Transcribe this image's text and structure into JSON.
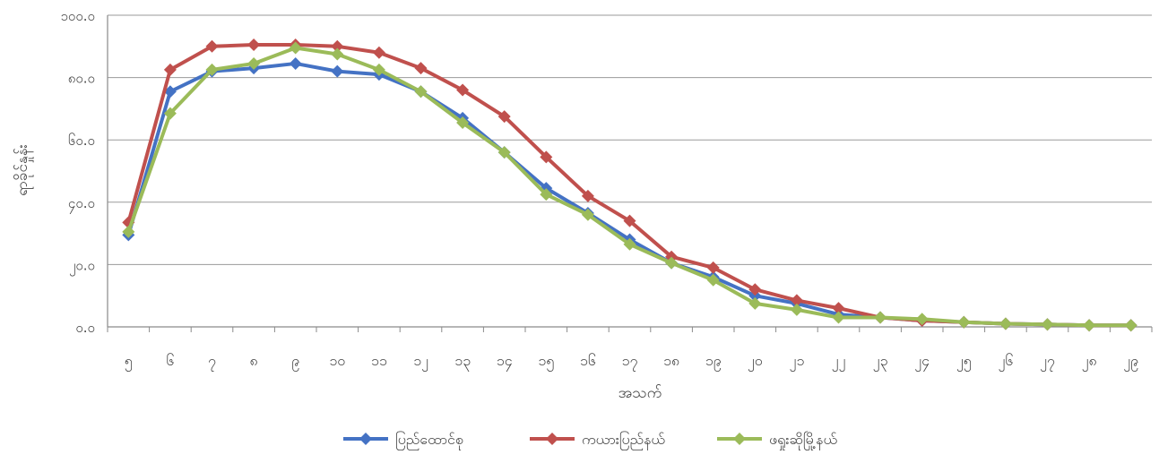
{
  "chart_data": {
    "type": "line",
    "title": "",
    "xlabel": "အသက်",
    "ylabel": "ရာခိုင်နှုန်း",
    "ylim": [
      0,
      100
    ],
    "yticks": [
      "၀.၀",
      "၂၀.၀",
      "၄၀.၀",
      "၆၀.၀",
      "၈၀.၀",
      "၁၀၀.၀"
    ],
    "grid": true,
    "legend_position": "bottom",
    "categories": [
      "၅",
      "၆",
      "၇",
      "၈",
      "၉",
      "၁၀",
      "၁၁",
      "၁၂",
      "၁၃",
      "၁၄",
      "၁၅",
      "၁၆",
      "၁၇",
      "၁၈",
      "၁၉",
      "၂၀",
      "၂၁",
      "၂၂",
      "၂၃",
      "၂၄",
      "၂၅",
      "၂၆",
      "၂၇",
      "၂၈",
      "၂၉"
    ],
    "series": [
      {
        "name": "ပြည်ထောင်စု",
        "color": "#4472C4",
        "values": [
          29.5,
          75.5,
          82.0,
          83.0,
          84.5,
          82.0,
          81.0,
          75.5,
          67.0,
          56.0,
          44.5,
          36.5,
          28.0,
          20.5,
          16.0,
          10.0,
          7.5,
          4.0,
          3.0,
          2.0,
          1.5,
          1.0,
          0.8,
          0.5,
          0.5
        ]
      },
      {
        "name": "ကယားပြည်နယ်",
        "color": "#C0504D",
        "values": [
          33.5,
          82.5,
          90.0,
          90.5,
          90.5,
          90.0,
          88.0,
          83.0,
          76.0,
          67.5,
          54.5,
          42.0,
          34.0,
          22.5,
          19.0,
          12.0,
          8.5,
          6.0,
          3.0,
          2.0,
          1.5,
          1.0,
          0.8,
          0.5,
          0.5
        ]
      },
      {
        "name": "ဖရှုးဆိုမြို့နယ်",
        "color": "#9BBB59",
        "values": [
          30.5,
          68.5,
          82.5,
          84.5,
          89.5,
          87.5,
          82.5,
          75.5,
          65.5,
          56.0,
          42.5,
          36.0,
          26.5,
          20.5,
          15.0,
          7.5,
          5.5,
          3.0,
          3.0,
          2.5,
          1.5,
          1.0,
          0.8,
          0.5,
          0.5
        ]
      }
    ]
  }
}
